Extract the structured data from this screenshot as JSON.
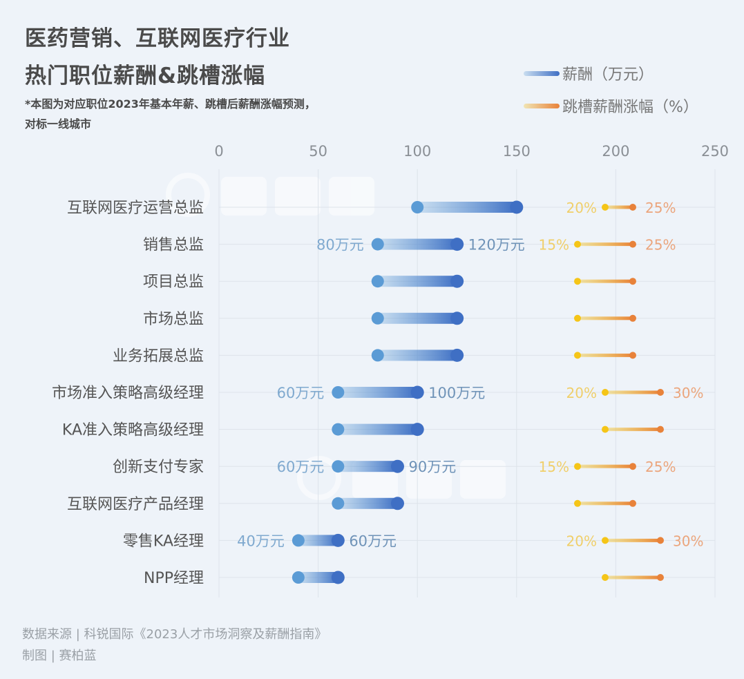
{
  "header": {
    "title_line1": "医药营销、互联网医疗行业",
    "title_line2": "热门职位薪酬&跳槽涨幅",
    "note_line1": "*本图为对应职位2023年基本年薪、跳槽后薪酬涨幅预测，",
    "note_line2": "对标一线城市"
  },
  "legend": {
    "salary": "薪酬（万元）",
    "raise": "跳槽薪酬涨幅（%）"
  },
  "watermark": "赛柏蓝",
  "footer": {
    "source": "数据来源 | 科锐国际《2023人才市场洞察及薪酬指南》",
    "credit": "制图 | 赛柏蓝"
  },
  "colors": {
    "salary_low": "#5b9bd5",
    "salary_high": "#3f6fc4",
    "raise_low": "#f5c518",
    "raise_high": "#e8823a",
    "salary_label": "#7fa9cf",
    "raise_low_label": "#f0cf6a",
    "raise_high_label": "#eba57c"
  },
  "chart_data": {
    "type": "dumbbell",
    "x_ticks": [
      "0",
      "50",
      "100",
      "150",
      "200",
      "250"
    ],
    "xlim": [
      0,
      250
    ],
    "grid": true,
    "legend_position": "top-right",
    "categories": [
      "互联网医疗运营总监",
      "销售总监",
      "项目总监",
      "市场总监",
      "业务拓展总监",
      "市场准入策略高级经理",
      "KA准入策略高级经理",
      "创新支付专家",
      "互联网医疗产品经理",
      "零售KA经理",
      "NPP经理"
    ],
    "series": [
      {
        "name": "薪酬（万元）",
        "low": [
          100,
          80,
          80,
          80,
          80,
          60,
          60,
          60,
          60,
          40,
          40
        ],
        "high": [
          150,
          120,
          120,
          120,
          120,
          100,
          100,
          90,
          90,
          60,
          60
        ],
        "low_labels": [
          "",
          "80万元",
          "",
          "",
          "",
          "60万元",
          "",
          "60万元",
          "",
          "40万元",
          ""
        ],
        "high_labels": [
          "",
          "120万元",
          "",
          "",
          "",
          "100万元",
          "",
          "90万元",
          "",
          "60万元",
          ""
        ]
      },
      {
        "name": "跳槽薪酬涨幅（%）",
        "low": [
          20,
          15,
          15,
          15,
          15,
          20,
          20,
          15,
          15,
          20,
          20
        ],
        "high": [
          25,
          25,
          25,
          25,
          25,
          30,
          30,
          25,
          25,
          30,
          30
        ],
        "low_labels": [
          "20%",
          "15%",
          "",
          "",
          "",
          "20%",
          "",
          "15%",
          "",
          "20%",
          ""
        ],
        "high_labels": [
          "25%",
          "25%",
          "",
          "",
          "",
          "30%",
          "",
          "25%",
          "",
          "30%",
          ""
        ]
      }
    ]
  }
}
